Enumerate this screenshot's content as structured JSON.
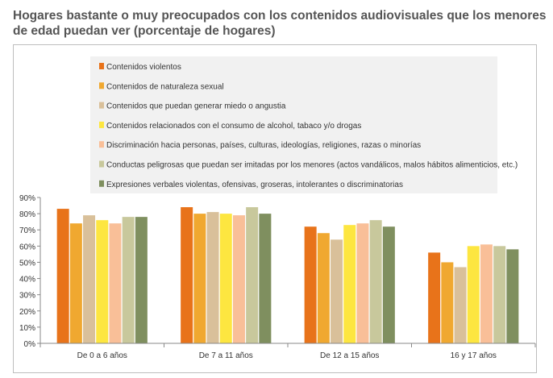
{
  "title": "Hogares bastante o muy preocupados con los contenidos audiovisuales que los menores de edad puedan ver (porcentaje de hogares)",
  "chart_data": {
    "type": "bar",
    "categories": [
      "De 0 a 6 años",
      "De 7 a 11 años",
      "De 12 a 15 años",
      "16 y 17 años"
    ],
    "y_ticks": [
      "0%",
      "10%",
      "20%",
      "30%",
      "40%",
      "50%",
      "60%",
      "70%",
      "80%",
      "90%"
    ],
    "ylim": [
      0,
      90
    ],
    "legend_position": "top",
    "series": [
      {
        "name": "Contenidos violentos",
        "color": "#e8731a",
        "values": [
          83,
          84,
          72,
          56
        ]
      },
      {
        "name": "Contenidos de naturaleza sexual",
        "color": "#f0a830",
        "values": [
          74,
          80,
          68,
          50
        ]
      },
      {
        "name": "Contenidos que puedan generar miedo o angustia",
        "color": "#d9c09a",
        "values": [
          79,
          81,
          64,
          47
        ]
      },
      {
        "name": "Contenidos relacionados con el consumo de alcohol, tabaco y/o drogas",
        "color": "#fde640",
        "values": [
          76,
          80,
          73,
          60
        ]
      },
      {
        "name": "Discriminación hacia personas, países, culturas, ideologías, religiones, razas o minorías",
        "color": "#f9bf98",
        "values": [
          74,
          79,
          74,
          61
        ]
      },
      {
        "name": "Conductas peligrosas que puedan ser imitadas por los menores (actos vandálicos, malos hábitos alimenticios, etc.)",
        "color": "#c8c89c",
        "values": [
          78,
          84,
          76,
          60
        ]
      },
      {
        "name": "Expresiones verbales violentas, ofensivas, groseras, intolerantes o discriminatorias",
        "color": "#7f8f5f",
        "values": [
          78,
          80,
          72,
          58
        ]
      }
    ]
  }
}
